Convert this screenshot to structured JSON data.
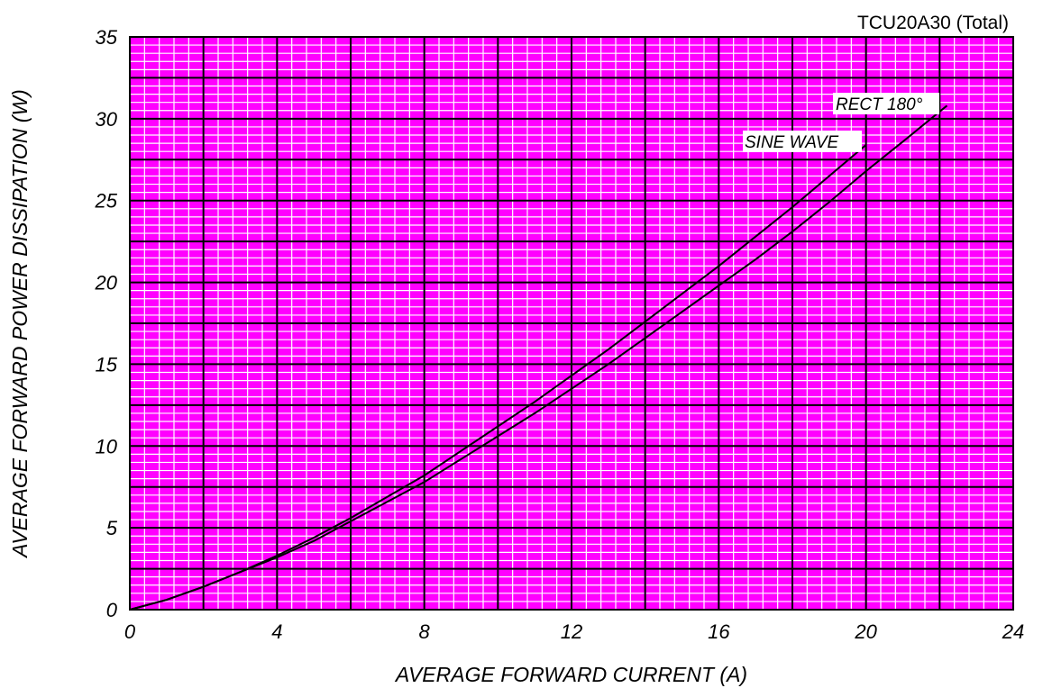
{
  "chart_data": {
    "type": "line",
    "title": "TCU20A30 (Total)",
    "xlabel": "AVERAGE FORWARD CURRENT (A)",
    "ylabel": "AVERAGE FORWARD POWER DISSIPATION (W)",
    "xlim": [
      0,
      24
    ],
    "ylim": [
      0,
      35
    ],
    "xticks": [
      0,
      4,
      8,
      12,
      16,
      20,
      24
    ],
    "yticks": [
      0,
      5,
      10,
      15,
      20,
      25,
      30,
      35
    ],
    "grid": true,
    "colors": {
      "background": "#ff00ff",
      "minor_grid": "#ffffff",
      "major_grid": "#000000",
      "line": "#000000"
    },
    "series": [
      {
        "name": "SINE WAVE",
        "x": [
          0,
          1,
          2,
          3,
          4,
          5,
          6,
          7,
          8,
          9,
          10,
          11,
          12,
          13,
          14,
          15,
          16,
          17,
          18,
          19,
          20
        ],
        "y": [
          0,
          0.6,
          1.4,
          2.3,
          3.3,
          4.4,
          5.6,
          6.9,
          8.2,
          9.7,
          11.2,
          12.7,
          14.3,
          15.9,
          17.6,
          19.3,
          21.0,
          22.8,
          24.6,
          26.5,
          28.4
        ]
      },
      {
        "name": "RECT 180°",
        "x": [
          0,
          1,
          2,
          3,
          4,
          5,
          6,
          7,
          8,
          9,
          10,
          11,
          12,
          13,
          14,
          15,
          16,
          17,
          18,
          19,
          20,
          21,
          22.2
        ],
        "y": [
          0,
          0.6,
          1.4,
          2.3,
          3.2,
          4.2,
          5.4,
          6.6,
          7.8,
          9.2,
          10.6,
          12.0,
          13.5,
          15.0,
          16.6,
          18.2,
          19.8,
          21.4,
          23.1,
          24.9,
          26.8,
          28.6,
          30.8
        ]
      }
    ]
  }
}
